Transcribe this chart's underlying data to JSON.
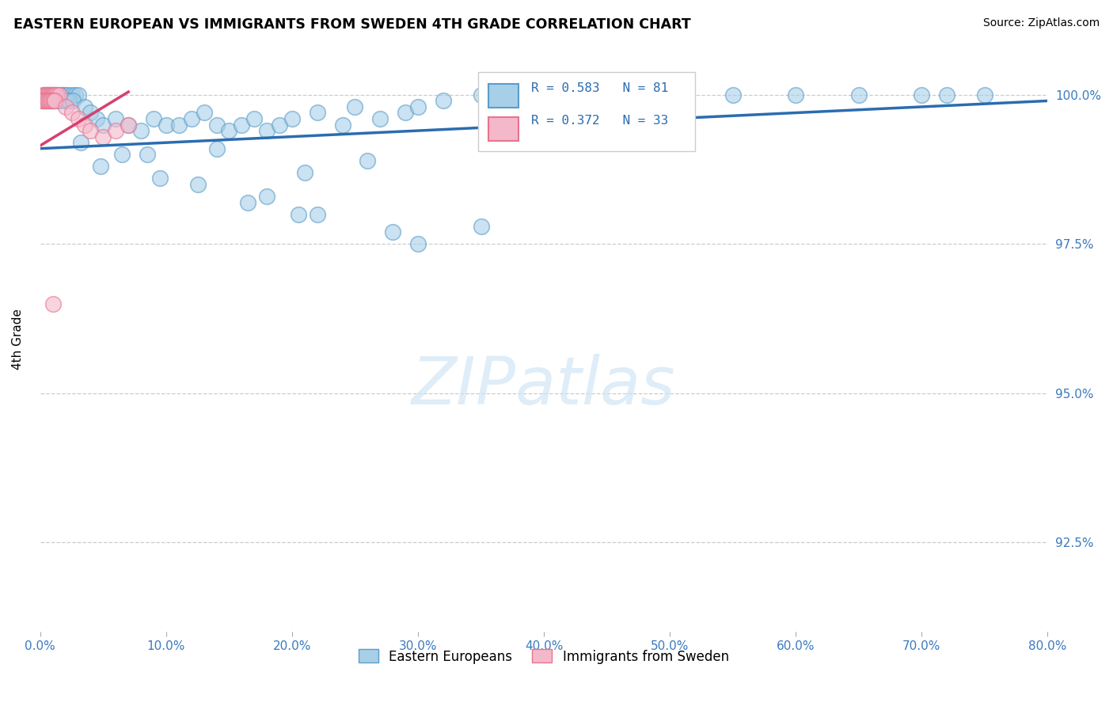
{
  "title": "EASTERN EUROPEAN VS IMMIGRANTS FROM SWEDEN 4TH GRADE CORRELATION CHART",
  "source": "Source: ZipAtlas.com",
  "ylabel": "4th Grade",
  "xlim": [
    0.0,
    80.0
  ],
  "ylim": [
    91.0,
    100.8
  ],
  "yticks": [
    92.5,
    95.0,
    97.5,
    100.0
  ],
  "xtick_values": [
    0,
    10,
    20,
    30,
    40,
    50,
    60,
    70,
    80
  ],
  "xtick_labels": [
    "0.0%",
    "10.0%",
    "20.0%",
    "30.0%",
    "40.0%",
    "50.0%",
    "60.0%",
    "70.0%",
    "80.0%"
  ],
  "ytick_labels": [
    "92.5%",
    "95.0%",
    "97.5%",
    "100.0%"
  ],
  "blue_R": 0.583,
  "blue_N": 81,
  "pink_R": 0.372,
  "pink_N": 33,
  "blue_color": "#a8cfe8",
  "pink_color": "#f4b8cb",
  "blue_edge": "#5b9dc9",
  "pink_edge": "#e8748e",
  "trend_blue": "#2b6cb0",
  "trend_pink": "#d63f6f",
  "legend_blue_label": "Eastern Europeans",
  "legend_pink_label": "Immigrants from Sweden",
  "watermark_text": "ZIPatlas",
  "blue_x": [
    0.3,
    0.5,
    0.7,
    0.8,
    1.0,
    1.2,
    1.3,
    1.5,
    1.7,
    1.8,
    2.0,
    2.2,
    2.5,
    2.8,
    3.0,
    0.2,
    0.4,
    0.6,
    0.9,
    1.1,
    1.4,
    1.6,
    1.9,
    2.1,
    2.3,
    2.6,
    3.5,
    4.0,
    4.5,
    5.0,
    6.0,
    7.0,
    8.0,
    9.0,
    10.0,
    11.0,
    12.0,
    13.0,
    14.0,
    15.0,
    16.0,
    17.0,
    18.0,
    19.0,
    20.0,
    22.0,
    24.0,
    25.0,
    27.0,
    29.0,
    30.0,
    32.0,
    35.0,
    37.0,
    40.0,
    42.0,
    45.0,
    48.0,
    50.0,
    55.0,
    60.0,
    65.0,
    70.0,
    72.0,
    75.0,
    8.5,
    12.5,
    16.5,
    20.5,
    18.0,
    22.0,
    28.0,
    30.0,
    35.0,
    3.2,
    4.8,
    6.5,
    9.5,
    14.0,
    21.0,
    26.0
  ],
  "blue_y": [
    100.0,
    100.0,
    100.0,
    100.0,
    100.0,
    100.0,
    100.0,
    100.0,
    100.0,
    100.0,
    100.0,
    100.0,
    100.0,
    100.0,
    100.0,
    99.9,
    99.9,
    99.9,
    99.9,
    99.9,
    99.9,
    99.9,
    99.9,
    99.9,
    99.9,
    99.9,
    99.8,
    99.7,
    99.6,
    99.5,
    99.6,
    99.5,
    99.4,
    99.6,
    99.5,
    99.5,
    99.6,
    99.7,
    99.5,
    99.4,
    99.5,
    99.6,
    99.4,
    99.5,
    99.6,
    99.7,
    99.5,
    99.8,
    99.6,
    99.7,
    99.8,
    99.9,
    100.0,
    99.9,
    100.0,
    99.9,
    100.0,
    99.9,
    100.0,
    100.0,
    100.0,
    100.0,
    100.0,
    100.0,
    100.0,
    99.0,
    98.5,
    98.2,
    98.0,
    98.3,
    98.0,
    97.7,
    97.5,
    97.8,
    99.2,
    98.8,
    99.0,
    98.6,
    99.1,
    98.7,
    98.9
  ],
  "pink_x": [
    0.2,
    0.3,
    0.4,
    0.5,
    0.6,
    0.7,
    0.8,
    0.9,
    1.0,
    1.1,
    1.2,
    1.3,
    1.5,
    0.15,
    0.25,
    0.35,
    0.45,
    0.55,
    0.65,
    0.75,
    0.85,
    0.95,
    1.05,
    1.15,
    2.0,
    2.5,
    3.0,
    3.5,
    4.0,
    5.0,
    6.0,
    7.0,
    1.0
  ],
  "pink_y": [
    100.0,
    100.0,
    100.0,
    100.0,
    100.0,
    100.0,
    100.0,
    100.0,
    100.0,
    100.0,
    100.0,
    100.0,
    100.0,
    99.9,
    99.9,
    99.9,
    99.9,
    99.9,
    99.9,
    99.9,
    99.9,
    99.9,
    99.9,
    99.9,
    99.8,
    99.7,
    99.6,
    99.5,
    99.4,
    99.3,
    99.4,
    99.5,
    96.5
  ],
  "blue_trendline_x": [
    0,
    80
  ],
  "blue_trendline_y": [
    99.1,
    99.9
  ],
  "pink_trendline_x": [
    0,
    7
  ],
  "pink_trendline_y": [
    99.15,
    100.05
  ]
}
